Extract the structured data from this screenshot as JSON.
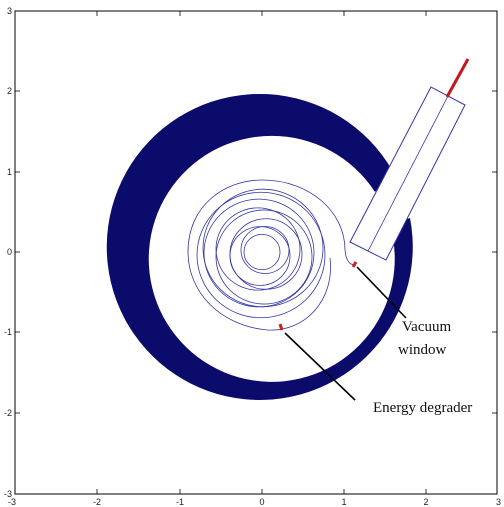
{
  "figure": {
    "annotations": [
      {
        "id": "vacuum",
        "lines": [
          "Vacuum",
          "window"
        ]
      },
      {
        "id": "degrader",
        "lines": [
          "Energy degrader"
        ]
      }
    ],
    "colors": {
      "yoke": "#0b0b6b",
      "orbit": "#3535a8",
      "beam": "#c4161c",
      "marker": "#d11f1f",
      "pointer": "#000000",
      "axes": "#000000"
    }
  },
  "chart_data": {
    "type": "diagram",
    "xlim": [
      -3,
      3
    ],
    "ylim": [
      -3,
      3
    ],
    "x_ticks": [
      "-3",
      "-2",
      "-1",
      "0",
      "1",
      "2",
      "3"
    ],
    "y_ticks": [
      "3",
      "2",
      "1",
      "0",
      "-1",
      "-2",
      "-3"
    ],
    "grid": false,
    "legend": "none"
  }
}
